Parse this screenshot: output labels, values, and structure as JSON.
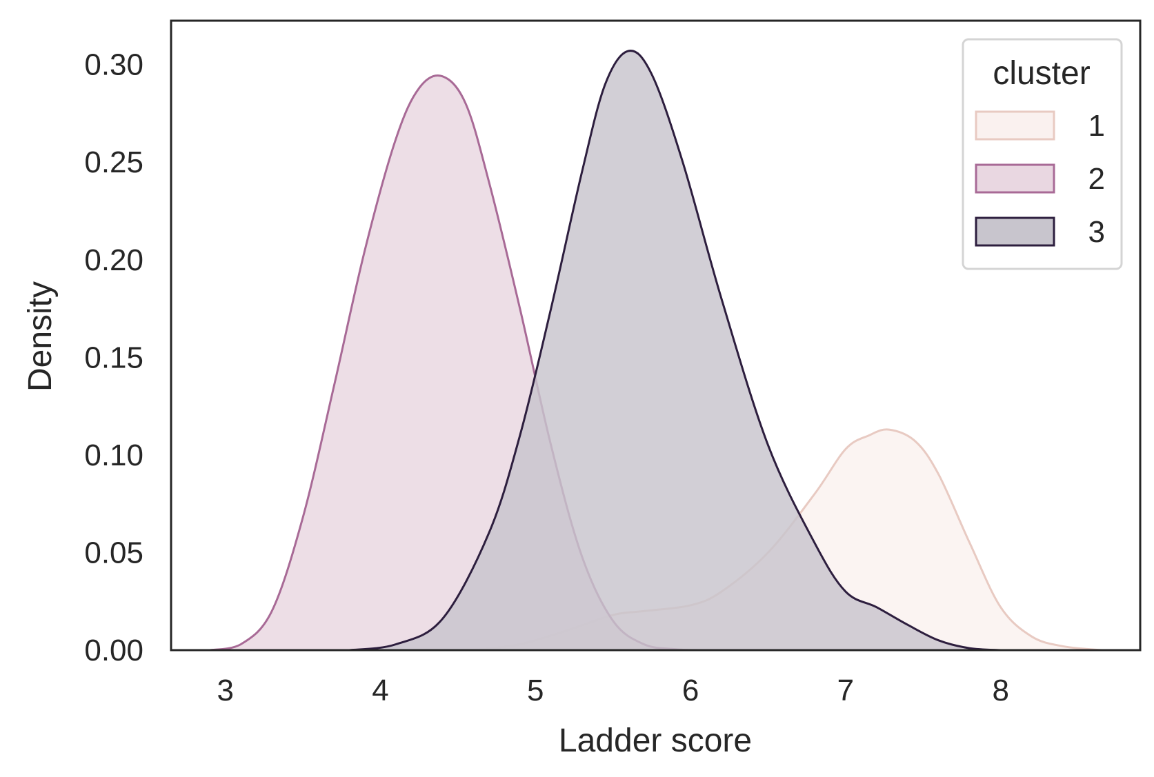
{
  "chart_data": {
    "type": "area",
    "xlabel": "Ladder score",
    "ylabel": "Density",
    "xlim": [
      2.65,
      8.9
    ],
    "ylim": [
      0.0,
      0.3225
    ],
    "xticks": [
      3,
      4,
      5,
      6,
      7,
      8
    ],
    "xtick_labels": [
      "3",
      "4",
      "5",
      "6",
      "7",
      "8"
    ],
    "yticks": [
      0.0,
      0.05,
      0.1,
      0.15,
      0.2,
      0.25,
      0.3
    ],
    "ytick_labels": [
      "0.00",
      "0.05",
      "0.10",
      "0.15",
      "0.20",
      "0.25",
      "0.30"
    ],
    "grid": false,
    "legend": {
      "title": "cluster",
      "location": "top-right"
    },
    "series": [
      {
        "name": "1",
        "color": "#e8cac2",
        "fill": "#faf1ef",
        "x": [
          4.6,
          4.9,
          5.2,
          5.5,
          5.7,
          6.0,
          6.2,
          6.5,
          6.8,
          7.0,
          7.15,
          7.28,
          7.45,
          7.6,
          7.8,
          8.0,
          8.2,
          8.4,
          8.65
        ],
        "y": [
          0.0,
          0.003,
          0.01,
          0.018,
          0.02,
          0.023,
          0.03,
          0.05,
          0.08,
          0.103,
          0.11,
          0.113,
          0.107,
          0.09,
          0.055,
          0.022,
          0.007,
          0.002,
          0.0
        ]
      },
      {
        "name": "2",
        "color": "#a86a96",
        "fill": "#e9d7e1",
        "x": [
          2.9,
          3.1,
          3.3,
          3.5,
          3.7,
          3.9,
          4.1,
          4.25,
          4.4,
          4.55,
          4.7,
          4.9,
          5.1,
          5.3,
          5.5,
          5.7,
          5.9,
          6.05
        ],
        "y": [
          0.0,
          0.003,
          0.02,
          0.068,
          0.135,
          0.205,
          0.262,
          0.288,
          0.294,
          0.28,
          0.24,
          0.175,
          0.105,
          0.048,
          0.015,
          0.003,
          0.0005,
          0.0
        ]
      },
      {
        "name": "3",
        "color": "#2d1e3e",
        "fill": "#c8c5cd",
        "x": [
          3.8,
          4.1,
          4.4,
          4.7,
          4.9,
          5.1,
          5.3,
          5.45,
          5.6,
          5.75,
          5.95,
          6.2,
          6.5,
          6.8,
          7.0,
          7.2,
          7.4,
          7.6,
          7.8,
          8.0
        ],
        "y": [
          0.0,
          0.003,
          0.016,
          0.06,
          0.11,
          0.175,
          0.245,
          0.29,
          0.307,
          0.295,
          0.25,
          0.18,
          0.105,
          0.055,
          0.03,
          0.022,
          0.013,
          0.005,
          0.001,
          0.0
        ]
      }
    ]
  }
}
